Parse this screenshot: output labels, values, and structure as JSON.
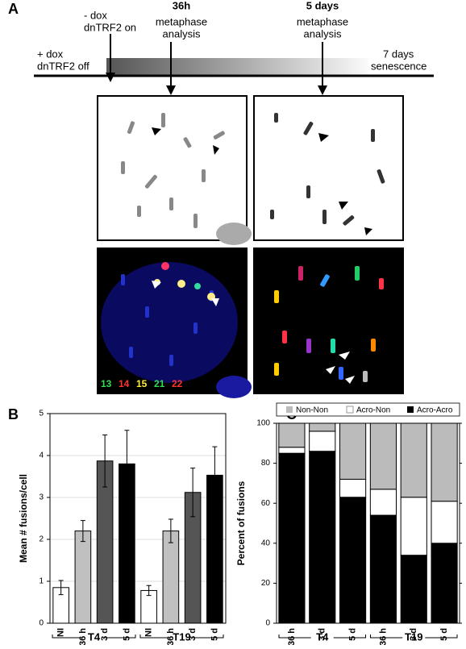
{
  "panel_a": {
    "label": "A",
    "timeline": {
      "start": [
        "+ dox",
        "dnTRF2 off"
      ],
      "on": [
        "- dox",
        "dnTRF2 on"
      ],
      "t36": [
        "36h",
        "metaphase",
        "analysis"
      ],
      "d5": [
        "5 days",
        "metaphase",
        "analysis"
      ],
      "end": [
        "7 days",
        "senescence"
      ]
    },
    "fish_legend": [
      {
        "label": "13",
        "color": "#33dd55"
      },
      {
        "label": "14",
        "color": "#ff3333"
      },
      {
        "label": "15",
        "color": "#ffee44"
      },
      {
        "label": "21",
        "color": "#33dd55"
      },
      {
        "label": "22",
        "color": "#ff3333"
      }
    ]
  },
  "chart_data": [
    {
      "type": "bar",
      "panel": "B",
      "ylabel": "Mean # fusions/cell",
      "categories": [
        "NI",
        "36 h",
        "3 d",
        "5 d",
        "NI",
        "36 h",
        "3 d",
        "5 d"
      ],
      "groups": [
        "T4",
        "T19"
      ],
      "values": [
        0.85,
        2.2,
        3.87,
        3.8,
        0.78,
        2.2,
        3.12,
        3.53
      ],
      "errors": [
        0.17,
        0.25,
        0.62,
        0.8,
        0.12,
        0.28,
        0.58,
        0.68
      ],
      "colors": [
        "#ffffff",
        "#c0c0c0",
        "#555555",
        "#000000",
        "#ffffff",
        "#c0c0c0",
        "#555555",
        "#000000"
      ],
      "ylim": [
        0,
        5
      ],
      "yticks": [
        0,
        1,
        2,
        3,
        4,
        5
      ],
      "grid": true
    },
    {
      "type": "stacked_bar",
      "panel": "C",
      "ylabel": "Percent of fusions",
      "categories": [
        "36 h",
        "3 d",
        "5 d",
        "36 h",
        "3 d",
        "5 d"
      ],
      "groups": [
        "T4",
        "T19"
      ],
      "series": [
        {
          "name": "Acro-Acro",
          "color": "#000000",
          "values": [
            85,
            86,
            63,
            54,
            34,
            40
          ]
        },
        {
          "name": "Acro-Non",
          "color": "#ffffff",
          "values": [
            3,
            10,
            9,
            13,
            29,
            21
          ]
        },
        {
          "name": "Non-Non",
          "color": "#bbbbbb",
          "values": [
            12,
            4,
            28,
            33,
            37,
            39
          ]
        }
      ],
      "legend_order": [
        2,
        1,
        0
      ],
      "ylim": [
        0,
        100
      ],
      "yticks": [
        0,
        20,
        40,
        60,
        80,
        100
      ],
      "grid": false
    }
  ]
}
